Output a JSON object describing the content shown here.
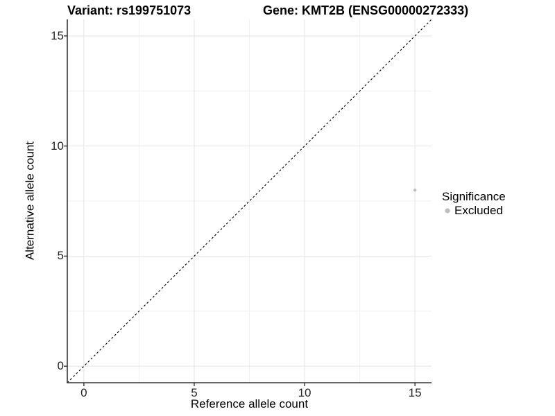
{
  "titles": {
    "variant": "Variant: rs199751073",
    "gene": "Gene: KMT2B (ENSG00000272333)"
  },
  "legend": {
    "title": "Significance",
    "items": [
      {
        "label": "Excluded",
        "color": "#bebebe"
      }
    ]
  },
  "chart_data": {
    "type": "scatter",
    "title_left": "Variant: rs199751073",
    "title_right": "Gene: KMT2B (ENSG00000272333)",
    "xlabel": "Reference allele count",
    "ylabel": "Alternative allele count",
    "xlim": [
      -0.75,
      15.75
    ],
    "ylim": [
      -0.75,
      15.75
    ],
    "x_ticks": [
      0,
      5,
      10,
      15
    ],
    "y_ticks": [
      0,
      5,
      10,
      15
    ],
    "grid": {
      "major": true,
      "minor": true,
      "major_color": "#e3e3e3",
      "minor_color": "#f0f0f0"
    },
    "axis_line_color": "#333333",
    "tick_mark_color": "#333333",
    "identity_line": {
      "style": "dashed",
      "color": "#000000",
      "from": -0.75,
      "to": 15.75
    },
    "series": [
      {
        "name": "Excluded",
        "color": "#bebebe",
        "point_radius": 2.2,
        "points": [
          {
            "x": 15,
            "y": 8
          }
        ]
      }
    ],
    "legend_title": "Significance",
    "legend_position": "right"
  }
}
